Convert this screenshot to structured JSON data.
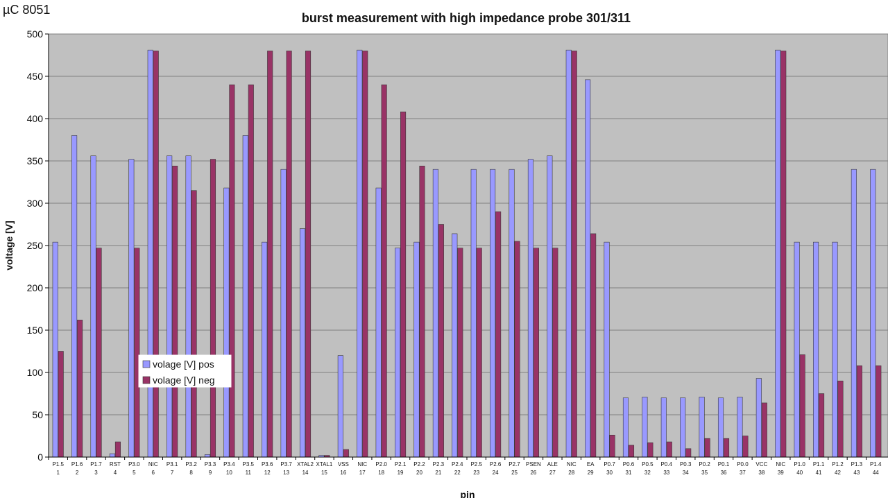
{
  "corner_label": "µC 8051",
  "chart_data": {
    "type": "bar",
    "title": "burst measurement with high impedance probe  301/311",
    "xlabel": "pin",
    "ylabel": "voltage [V]",
    "ylim": [
      0,
      500
    ],
    "yticks": [
      0,
      50,
      100,
      150,
      200,
      250,
      300,
      350,
      400,
      450,
      500
    ],
    "grid": true,
    "legend_position": "lower-left",
    "categories": [
      "P1.5",
      "P1.6",
      "P1.7",
      "RST",
      "P3.0",
      "NIC",
      "P3.1",
      "P3.2",
      "P3.3",
      "P3.4",
      "P3.5",
      "P3.6",
      "P3.7",
      "XTAL2",
      "XTAL1",
      "VSS",
      "NIC",
      "P2.0",
      "P2.1",
      "P2.2",
      "P2.3",
      "P2.4",
      "P2.5",
      "P2.6",
      "P2.7",
      "PSEN",
      "ALE",
      "NIC",
      "EA",
      "P0.7",
      "P0.6",
      "P0.5",
      "P0.4",
      "P0.3",
      "P0.2",
      "P0.1",
      "P0.0",
      "VCC",
      "NIC",
      "P1.0",
      "P1.1",
      "P1.2",
      "P1.3",
      "P1.4"
    ],
    "pin_numbers": [
      "1",
      "2",
      "3",
      "4",
      "5",
      "6",
      "7",
      "8",
      "9",
      "10",
      "11",
      "12",
      "13",
      "14",
      "15",
      "16",
      "17",
      "18",
      "19",
      "20",
      "21",
      "22",
      "23",
      "24",
      "25",
      "26",
      "27",
      "28",
      "29",
      "30",
      "31",
      "32",
      "33",
      "34",
      "35",
      "36",
      "37",
      "38",
      "39",
      "40",
      "41",
      "42",
      "43",
      "44"
    ],
    "series": [
      {
        "name": "volage [V] pos",
        "color": "#9999ff",
        "values": [
          254,
          380,
          356,
          4,
          352,
          481,
          356,
          356,
          3,
          318,
          380,
          254,
          340,
          270,
          2,
          120,
          481,
          318,
          247,
          254,
          340,
          264,
          340,
          340,
          340,
          352,
          356,
          481,
          446,
          254,
          70,
          71,
          70,
          70,
          71,
          70,
          71,
          93,
          481,
          254,
          254,
          254,
          340,
          340
        ]
      },
      {
        "name": "volage [V] neg",
        "color": "#993366",
        "values": [
          125,
          162,
          247,
          18,
          247,
          480,
          344,
          315,
          352,
          440,
          440,
          480,
          480,
          480,
          2,
          9,
          480,
          440,
          408,
          344,
          275,
          247,
          247,
          290,
          255,
          247,
          247,
          480,
          264,
          26,
          14,
          17,
          18,
          10,
          22,
          22,
          25,
          64,
          480,
          121,
          75,
          90,
          108,
          108
        ]
      }
    ]
  }
}
